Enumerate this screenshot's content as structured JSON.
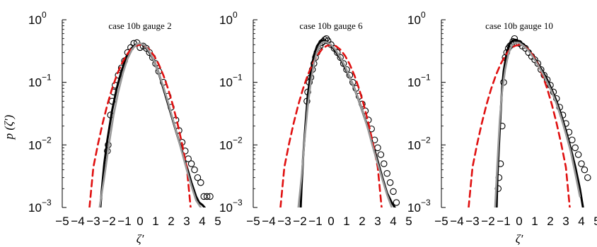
{
  "colors": {
    "measured": "#000000",
    "model": "#9a9a9a",
    "gaussian": "#e01010",
    "markers": "#000000"
  },
  "ylabel": "p (ζ′)",
  "chart_data": [
    {
      "type": "line",
      "title": "case 10b gauge 2",
      "xlabel": "ζ′",
      "xlim": [
        -5,
        5
      ],
      "ylim": [
        0.001,
        1
      ],
      "yscale": "log",
      "xticks": [
        "−5",
        "−4",
        "−3",
        "−2",
        "−1",
        "0",
        "1",
        "2",
        "3",
        "4",
        "5"
      ],
      "yticks": [
        {
          "base": "10",
          "exp": "0"
        },
        {
          "base": "10",
          "exp": "−1"
        },
        {
          "base": "10",
          "exp": "−2"
        },
        {
          "base": "10",
          "exp": "−3"
        }
      ],
      "series": [
        {
          "style": "solid-black",
          "x": [
            -2.55,
            -2.45,
            -2.3,
            -2.1,
            -1.8,
            -1.5,
            -1.2,
            -0.9,
            -0.6,
            -0.3,
            0,
            0.3,
            0.6,
            0.9,
            1.2,
            1.5,
            1.8,
            2.1,
            2.4,
            2.7,
            3.0,
            3.3,
            3.6,
            3.8,
            4.0,
            4.15
          ],
          "y": [
            0.001,
            0.002,
            0.005,
            0.012,
            0.035,
            0.08,
            0.15,
            0.25,
            0.34,
            0.4,
            0.42,
            0.38,
            0.3,
            0.22,
            0.14,
            0.08,
            0.045,
            0.025,
            0.014,
            0.008,
            0.0045,
            0.0025,
            0.0015,
            0.0012,
            0.0011,
            0.001
          ]
        },
        {
          "style": "solid-gray",
          "x": [
            -2.6,
            -2.3,
            -2.0,
            -1.7,
            -1.4,
            -1.1,
            -0.8,
            -0.5,
            -0.2,
            0,
            0.3,
            0.6,
            0.9,
            1.2,
            1.5,
            1.8,
            2.1,
            2.4,
            2.7,
            3.0,
            3.3,
            3.6,
            3.9
          ],
          "y": [
            0.001,
            0.003,
            0.01,
            0.03,
            0.07,
            0.14,
            0.24,
            0.34,
            0.41,
            0.42,
            0.39,
            0.31,
            0.22,
            0.14,
            0.085,
            0.048,
            0.026,
            0.014,
            0.0075,
            0.004,
            0.0022,
            0.0013,
            0.001
          ]
        },
        {
          "style": "dashed-red",
          "x": [
            -3.25,
            -3.0,
            -2.7,
            -2.4,
            -2.1,
            -1.8,
            -1.5,
            -1.2,
            -0.9,
            -0.6,
            -0.3,
            0,
            0.3,
            0.6,
            0.9,
            1.2,
            1.5,
            1.8,
            2.1,
            2.4,
            2.7,
            3.0,
            3.25
          ],
          "y": [
            0.001,
            0.0044,
            0.0104,
            0.0224,
            0.044,
            0.079,
            0.1295,
            0.1942,
            0.2661,
            0.3332,
            0.3814,
            0.3989,
            0.3814,
            0.3332,
            0.2661,
            0.1942,
            0.1295,
            0.079,
            0.044,
            0.0224,
            0.0104,
            0.0044,
            0.001
          ]
        },
        {
          "style": "markers",
          "x": [
            -2.1,
            -2.05,
            -1.9,
            -1.8,
            -1.7,
            -1.6,
            -1.4,
            -1.2,
            -1.0,
            -0.8,
            -0.6,
            -0.4,
            -0.2,
            0,
            0.2,
            0.4,
            0.6,
            0.8,
            1.0,
            1.2,
            1.5,
            1.8,
            2.0,
            2.3,
            2.5,
            2.7,
            2.9,
            3.1,
            3.3,
            3.5,
            3.7,
            3.9,
            4.1,
            4.3,
            4.5
          ],
          "y": [
            0.008,
            0.01,
            0.03,
            0.05,
            0.07,
            0.09,
            0.13,
            0.17,
            0.22,
            0.3,
            0.36,
            0.42,
            0.43,
            0.36,
            0.38,
            0.35,
            0.3,
            0.25,
            0.2,
            0.15,
            0.1,
            0.06,
            0.04,
            0.025,
            0.017,
            0.011,
            0.008,
            0.006,
            0.005,
            0.004,
            0.003,
            0.0025,
            0.0015,
            0.0015,
            0.0015
          ]
        }
      ]
    },
    {
      "type": "line",
      "title": "case 10b gauge 6",
      "xlabel": "",
      "xlim": [
        -5,
        5
      ],
      "ylim": [
        0.001,
        1
      ],
      "yscale": "log",
      "xticks": [
        "−5",
        "−4",
        "−3",
        "−2",
        "−1",
        "0",
        "1",
        "2",
        "3",
        "4",
        "5"
      ],
      "yticks": [
        {
          "base": "10",
          "exp": "0"
        },
        {
          "base": "10",
          "exp": "−1"
        },
        {
          "base": "10",
          "exp": "−2"
        },
        {
          "base": "10",
          "exp": "−3"
        }
      ],
      "series": [
        {
          "style": "solid-black",
          "x": [
            -1.95,
            -1.9,
            -1.8,
            -1.65,
            -1.5,
            -1.3,
            -1.1,
            -0.9,
            -0.7,
            -0.5,
            -0.3,
            0,
            0.3,
            0.6,
            0.9,
            1.2,
            1.5,
            1.8,
            2.1,
            2.4,
            2.7,
            3.0,
            3.3,
            3.6,
            3.9,
            4.1
          ],
          "y": [
            0.001,
            0.002,
            0.006,
            0.02,
            0.06,
            0.15,
            0.27,
            0.38,
            0.45,
            0.47,
            0.45,
            0.39,
            0.31,
            0.24,
            0.17,
            0.12,
            0.08,
            0.05,
            0.03,
            0.018,
            0.01,
            0.0055,
            0.003,
            0.0017,
            0.0012,
            0.001
          ]
        },
        {
          "style": "solid-gray",
          "x": [
            -2.1,
            -1.9,
            -1.7,
            -1.5,
            -1.3,
            -1.1,
            -0.9,
            -0.7,
            -0.5,
            -0.3,
            0,
            0.3,
            0.6,
            0.9,
            1.2,
            1.5,
            1.8,
            2.1,
            2.4,
            2.7,
            3.0,
            3.3,
            3.6,
            3.9
          ],
          "y": [
            0.001,
            0.003,
            0.012,
            0.04,
            0.1,
            0.2,
            0.31,
            0.4,
            0.44,
            0.44,
            0.4,
            0.33,
            0.25,
            0.18,
            0.12,
            0.08,
            0.05,
            0.03,
            0.017,
            0.009,
            0.005,
            0.0028,
            0.0016,
            0.001
          ]
        },
        {
          "style": "dashed-red",
          "x": [
            -3.25,
            -3.0,
            -2.7,
            -2.4,
            -2.1,
            -1.8,
            -1.5,
            -1.2,
            -0.9,
            -0.6,
            -0.3,
            0,
            0.3,
            0.6,
            0.9,
            1.2,
            1.5,
            1.8,
            2.1,
            2.4,
            2.7,
            3.0,
            3.25
          ],
          "y": [
            0.001,
            0.0044,
            0.0104,
            0.0224,
            0.044,
            0.079,
            0.1295,
            0.1942,
            0.2661,
            0.3332,
            0.3814,
            0.3989,
            0.3814,
            0.3332,
            0.2661,
            0.1942,
            0.1295,
            0.079,
            0.044,
            0.0224,
            0.0104,
            0.0044,
            0.001
          ]
        },
        {
          "style": "markers",
          "x": [
            -1.55,
            -1.5,
            -1.4,
            -1.3,
            -1.2,
            -1.1,
            -1.0,
            -0.9,
            -0.8,
            -0.7,
            -0.6,
            -0.5,
            -0.4,
            -0.3,
            -0.2,
            0,
            0.2,
            0.4,
            0.6,
            0.8,
            1.0,
            1.2,
            1.4,
            1.6,
            1.8,
            2.0,
            2.2,
            2.4,
            2.6,
            2.8,
            3.0,
            3.2,
            3.4,
            3.6,
            3.8,
            4.0,
            4.2
          ],
          "y": [
            0.05,
            0.07,
            0.1,
            0.12,
            0.16,
            0.2,
            0.25,
            0.3,
            0.34,
            0.38,
            0.43,
            0.45,
            0.48,
            0.5,
            0.46,
            0.4,
            0.35,
            0.3,
            0.25,
            0.2,
            0.16,
            0.13,
            0.1,
            0.08,
            0.06,
            0.045,
            0.035,
            0.025,
            0.018,
            0.012,
            0.009,
            0.007,
            0.005,
            0.0035,
            0.0025,
            0.0018,
            0.0012
          ]
        }
      ]
    },
    {
      "type": "line",
      "title": "case 10b gauge 10",
      "xlabel": "ζ′",
      "xlim": [
        -5,
        5
      ],
      "ylim": [
        0.001,
        1
      ],
      "yscale": "log",
      "xticks": [
        "−5",
        "−4",
        "−3",
        "−2",
        "−1",
        "0",
        "1",
        "2",
        "3",
        "4",
        "5"
      ],
      "yticks": [
        {
          "base": "10",
          "exp": "0"
        },
        {
          "base": "10",
          "exp": "−1"
        },
        {
          "base": "10",
          "exp": "−2"
        },
        {
          "base": "10",
          "exp": "−3"
        }
      ],
      "series": [
        {
          "style": "solid-black",
          "x": [
            -1.45,
            -1.4,
            -1.3,
            -1.2,
            -1.1,
            -1.0,
            -0.8,
            -0.6,
            -0.4,
            -0.2,
            0,
            0.3,
            0.6,
            0.9,
            1.2,
            1.5,
            1.8,
            2.1,
            2.4,
            2.7,
            3.0,
            3.3,
            3.6,
            3.9,
            4.1
          ],
          "y": [
            0.001,
            0.003,
            0.01,
            0.03,
            0.08,
            0.15,
            0.3,
            0.42,
            0.47,
            0.48,
            0.45,
            0.4,
            0.33,
            0.26,
            0.2,
            0.15,
            0.11,
            0.075,
            0.05,
            0.03,
            0.017,
            0.009,
            0.0045,
            0.002,
            0.001
          ]
        },
        {
          "style": "solid-gray",
          "x": [
            -1.55,
            -1.45,
            -1.35,
            -1.25,
            -1.1,
            -0.9,
            -0.7,
            -0.5,
            -0.3,
            0,
            0.3,
            0.6,
            0.9,
            1.2,
            1.5,
            1.8,
            2.1,
            2.4,
            2.7,
            3.0,
            3.3,
            3.6,
            3.9
          ],
          "y": [
            0.001,
            0.003,
            0.009,
            0.025,
            0.07,
            0.16,
            0.28,
            0.38,
            0.43,
            0.43,
            0.38,
            0.32,
            0.25,
            0.19,
            0.14,
            0.1,
            0.07,
            0.045,
            0.027,
            0.015,
            0.008,
            0.0035,
            0.0015
          ]
        },
        {
          "style": "dashed-red",
          "x": [
            -3.25,
            -3.0,
            -2.7,
            -2.4,
            -2.1,
            -1.8,
            -1.5,
            -1.2,
            -0.9,
            -0.6,
            -0.3,
            0,
            0.3,
            0.6,
            0.9,
            1.2,
            1.5,
            1.8,
            2.1,
            2.4,
            2.7,
            3.0,
            3.25
          ],
          "y": [
            0.001,
            0.0044,
            0.0104,
            0.0224,
            0.044,
            0.079,
            0.1295,
            0.1942,
            0.2661,
            0.3332,
            0.3814,
            0.3989,
            0.3814,
            0.3332,
            0.2661,
            0.1942,
            0.1295,
            0.079,
            0.044,
            0.0224,
            0.0104,
            0.0044,
            0.001
          ]
        },
        {
          "style": "markers",
          "x": [
            -1.35,
            -1.3,
            -1.2,
            -1.1,
            -1.0,
            -0.9,
            -0.8,
            -0.7,
            -0.6,
            -0.5,
            -0.4,
            -0.3,
            -0.2,
            0,
            0.2,
            0.4,
            0.6,
            0.8,
            1.0,
            1.2,
            1.4,
            1.6,
            1.8,
            2.0,
            2.2,
            2.4,
            2.6,
            2.8,
            3.0,
            3.2,
            3.4,
            3.6,
            3.8,
            4.0,
            4.2,
            4.4
          ],
          "y": [
            0.002,
            0.003,
            0.005,
            0.02,
            0.1,
            0.25,
            0.3,
            0.35,
            0.38,
            0.4,
            0.45,
            0.5,
            0.43,
            0.42,
            0.38,
            0.35,
            0.3,
            0.26,
            0.23,
            0.2,
            0.16,
            0.13,
            0.11,
            0.09,
            0.07,
            0.055,
            0.04,
            0.03,
            0.022,
            0.016,
            0.012,
            0.009,
            0.007,
            0.005,
            0.004,
            0.003
          ]
        }
      ]
    }
  ]
}
